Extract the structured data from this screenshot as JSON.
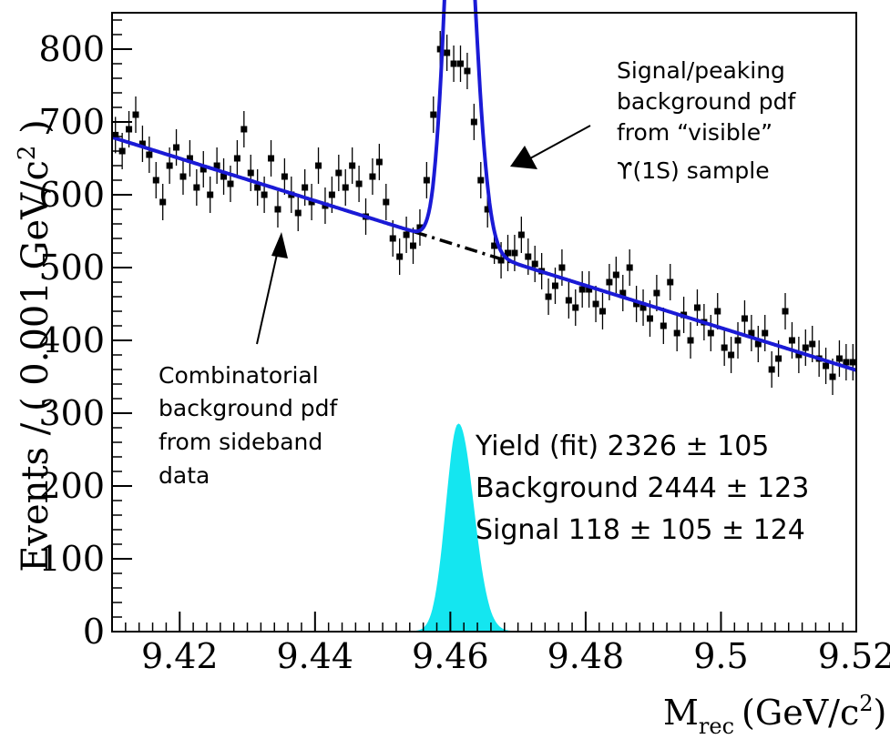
{
  "chart_data": {
    "type": "scatter",
    "xlabel": "M",
    "xlabel_sub": "rec",
    "xlabel_unit": "(GeV/c",
    "xlabel_unit_sup": "2",
    "xlabel_unit_close": ")",
    "ylabel": "Events / ( 0.001 GeV/c",
    "ylabel_sup": "2",
    "ylabel_close": " )",
    "xlim": [
      9.41,
      9.52
    ],
    "ylim": [
      0,
      850
    ],
    "x_ticks": [
      9.42,
      9.44,
      9.46,
      9.48,
      9.5,
      9.52
    ],
    "x_tick_labels": [
      "9.42",
      "9.44",
      "9.46",
      "9.48",
      "9.5",
      "9.52"
    ],
    "y_ticks": [
      0,
      100,
      200,
      300,
      400,
      500,
      600,
      700,
      800
    ],
    "y_tick_labels": [
      "0",
      "100",
      "200",
      "300",
      "400",
      "500",
      "600",
      "700",
      "800"
    ],
    "grid": false,
    "background_line": {
      "x0": 9.41,
      "y0": 679,
      "x1": 9.52,
      "y1": 359
    },
    "signal_peak": {
      "mean": 9.4612,
      "amplitude": 285,
      "width_left": 0.0018,
      "width_right": 0.0022
    },
    "colors": {
      "fit": "#1a1ad6",
      "signal_fill": "#14e6f0",
      "points": "#000000",
      "background": "#000000"
    },
    "series": [
      {
        "x": [
          9.4105,
          9.4115,
          9.4125,
          9.4135,
          9.4145,
          9.4155,
          9.4165,
          9.4175,
          9.4185,
          9.4195,
          9.4205,
          9.4215,
          9.4225,
          9.4235,
          9.4245,
          9.4255,
          9.4265,
          9.4275,
          9.4285,
          9.4295,
          9.4305,
          9.4315,
          9.4325,
          9.4335,
          9.4345,
          9.4355,
          9.4365,
          9.4375,
          9.4385,
          9.4395,
          9.4405,
          9.4415,
          9.4425,
          9.4435,
          9.4445,
          9.4455,
          9.4465,
          9.4475,
          9.4485,
          9.4495,
          9.4505,
          9.4515,
          9.4525,
          9.4535,
          9.4545,
          9.4555,
          9.4565,
          9.4575,
          9.4585,
          9.4595,
          9.4605,
          9.4615,
          9.4625,
          9.4635,
          9.4645,
          9.4655,
          9.4665,
          9.4675,
          9.4685,
          9.4695,
          9.4705,
          9.4715,
          9.4725,
          9.4735,
          9.4745,
          9.4755,
          9.4765,
          9.4775,
          9.4785,
          9.4795,
          9.4805,
          9.4815,
          9.4825,
          9.4835,
          9.4845,
          9.4855,
          9.4865,
          9.4875,
          9.4885,
          9.4895,
          9.4905,
          9.4915,
          9.4925,
          9.4935,
          9.4945,
          9.4955,
          9.4965,
          9.4975,
          9.4985,
          9.4995,
          9.5005,
          9.5015,
          9.5025,
          9.5035,
          9.5045,
          9.5055,
          9.5065,
          9.5075,
          9.5085,
          9.5095,
          9.5105,
          9.5115,
          9.5125,
          9.5135,
          9.5145,
          9.5155,
          9.5165,
          9.5175,
          9.5185,
          9.5195
        ],
        "y": [
          682,
          660,
          690,
          710,
          670,
          655,
          620,
          590,
          640,
          665,
          625,
          650,
          610,
          635,
          600,
          640,
          625,
          615,
          650,
          690,
          630,
          610,
          600,
          650,
          580,
          625,
          600,
          575,
          610,
          590,
          640,
          585,
          600,
          630,
          610,
          640,
          615,
          570,
          625,
          645,
          590,
          540,
          515,
          545,
          530,
          555,
          620,
          710,
          800,
          795,
          780,
          780,
          770,
          700,
          620,
          580,
          530,
          510,
          520,
          520,
          545,
          515,
          505,
          495,
          460,
          475,
          500,
          455,
          445,
          470,
          470,
          450,
          440,
          480,
          490,
          465,
          500,
          450,
          445,
          430,
          465,
          420,
          480,
          410,
          435,
          400,
          445,
          425,
          410,
          440,
          390,
          380,
          400,
          430,
          410,
          395,
          410,
          360,
          375,
          440,
          400,
          380,
          390,
          395,
          375,
          365,
          350,
          375,
          370,
          370
        ],
        "err": [
          25
        ]
      }
    ],
    "annotations": {
      "signal_label": [
        "Signal/peaking",
        "background pdf",
        "from “visible”",
        "ϒ(1S) sample"
      ],
      "background_label": [
        "Combinatorial",
        "background pdf",
        "from sideband",
        "data"
      ],
      "stats": [
        "Yield (fit) 2326 ± 105",
        "Background 2444 ± 123",
        "Signal 118 ± 105 ± 124"
      ]
    }
  }
}
